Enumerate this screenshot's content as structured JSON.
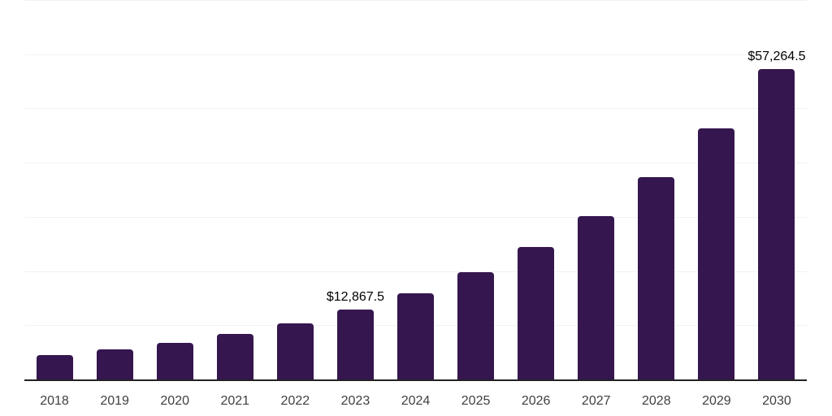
{
  "chart_data": {
    "type": "bar",
    "title": "",
    "xlabel": "",
    "ylabel": "",
    "categories": [
      "2018",
      "2019",
      "2020",
      "2021",
      "2022",
      "2023",
      "2024",
      "2025",
      "2026",
      "2027",
      "2028",
      "2029",
      "2030"
    ],
    "values": [
      4429.5,
      5482.6,
      6786.0,
      8399.3,
      10396.0,
      12867.5,
      15926.6,
      19713.0,
      24399.5,
      30200.0,
      37379.7,
      46266.2,
      57264.5
    ],
    "data_labels": [
      "",
      "",
      "",
      "",
      "",
      "$12,867.5",
      "",
      "",
      "",
      "",
      "",
      "",
      "$57,264.5"
    ],
    "ylim": [
      0,
      70000
    ],
    "grid_step": 10000,
    "grid": "horizontal",
    "legend": "none",
    "y_axis_ticks_visible": false,
    "colors": {
      "bar": "#35164E",
      "axis_line": "#222222",
      "gridline": "#F2F2F2",
      "tick_label": "#404040",
      "data_label": "#000000",
      "background": "#FFFFFF"
    }
  }
}
